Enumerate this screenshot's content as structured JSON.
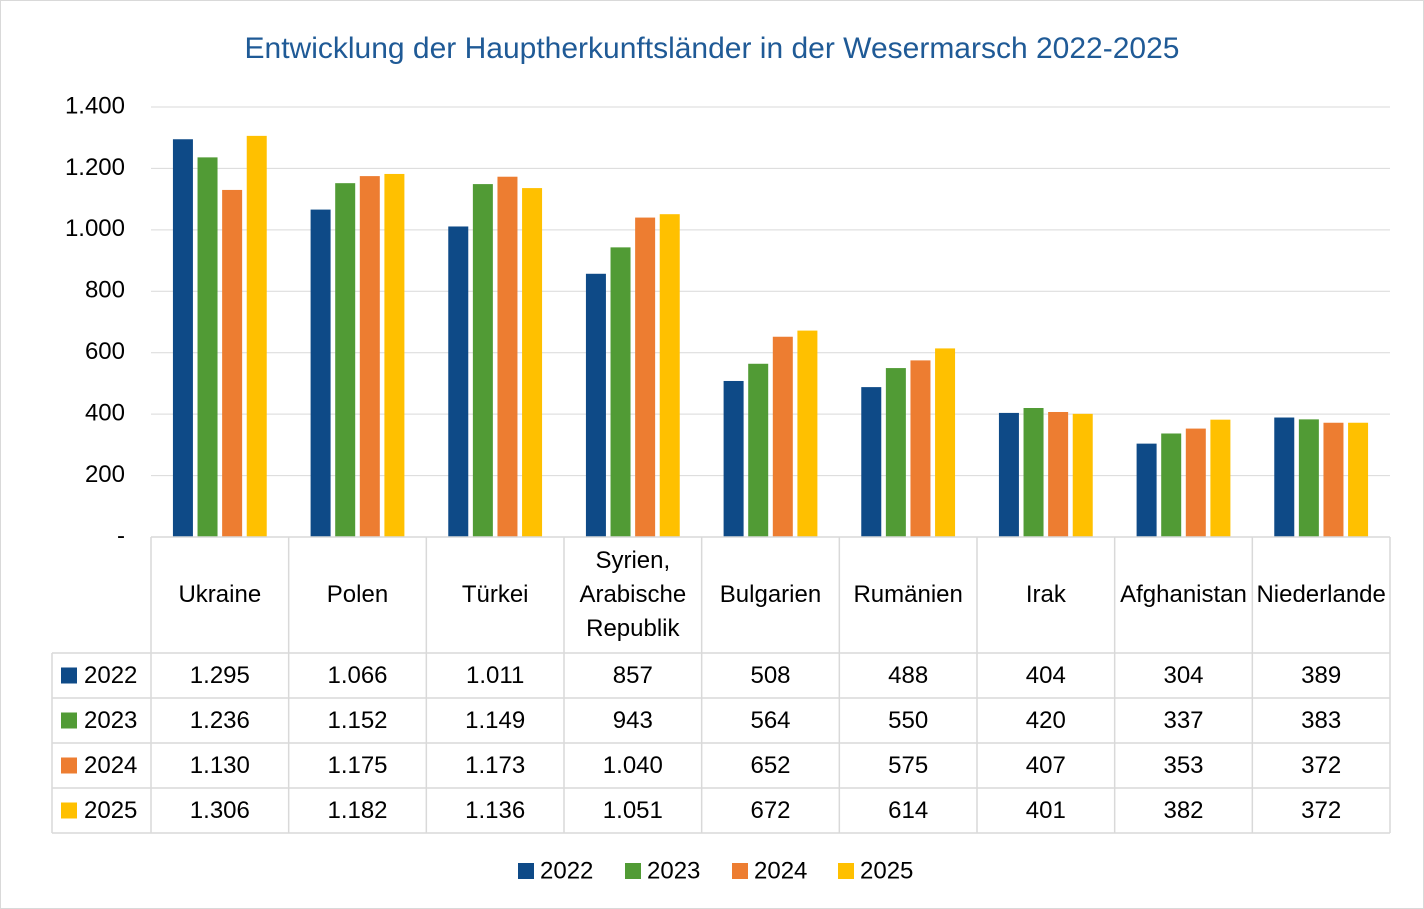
{
  "chart_data": {
    "type": "bar",
    "title": "Entwicklung der Hauptherkunftsländer in der Wesermarsch 2022-2025",
    "categories": [
      "Ukraine",
      "Polen",
      "Türkei",
      "Syrien, Arabische Republik",
      "Bulgarien",
      "Rumänien",
      "Irak",
      "Afghanistan",
      "Niederlande"
    ],
    "series": [
      {
        "name": "2022",
        "color": "#0e4a87",
        "values": [
          1295,
          1066,
          1011,
          857,
          508,
          488,
          404,
          304,
          389
        ],
        "value_labels": [
          "1.295",
          "1.066",
          "1.011",
          "857",
          "508",
          "488",
          "404",
          "304",
          "389"
        ]
      },
      {
        "name": "2023",
        "color": "#519b35",
        "values": [
          1236,
          1152,
          1149,
          943,
          564,
          550,
          420,
          337,
          383
        ],
        "value_labels": [
          "1.236",
          "1.152",
          "1.149",
          "943",
          "564",
          "550",
          "420",
          "337",
          "383"
        ]
      },
      {
        "name": "2024",
        "color": "#ed7d31",
        "values": [
          1130,
          1175,
          1173,
          1040,
          652,
          575,
          407,
          353,
          372
        ],
        "value_labels": [
          "1.130",
          "1.175",
          "1.173",
          "1.040",
          "652",
          "575",
          "407",
          "353",
          "372"
        ]
      },
      {
        "name": "2025",
        "color": "#ffc000",
        "values": [
          1306,
          1182,
          1136,
          1051,
          672,
          614,
          401,
          382,
          372
        ],
        "value_labels": [
          "1.306",
          "1.182",
          "1.136",
          "1.051",
          "672",
          "614",
          "401",
          "382",
          "372"
        ]
      }
    ],
    "ylim": [
      0,
      1400
    ],
    "yticks": [
      {
        "value": 0,
        "label": "-"
      },
      200,
      400,
      600,
      800,
      {
        "value": 1000,
        "label": "1.000"
      },
      {
        "value": 1200,
        "label": "1.200"
      },
      {
        "value": 1400,
        "label": "1.400"
      }
    ],
    "grid": true,
    "legend": "bottom"
  }
}
